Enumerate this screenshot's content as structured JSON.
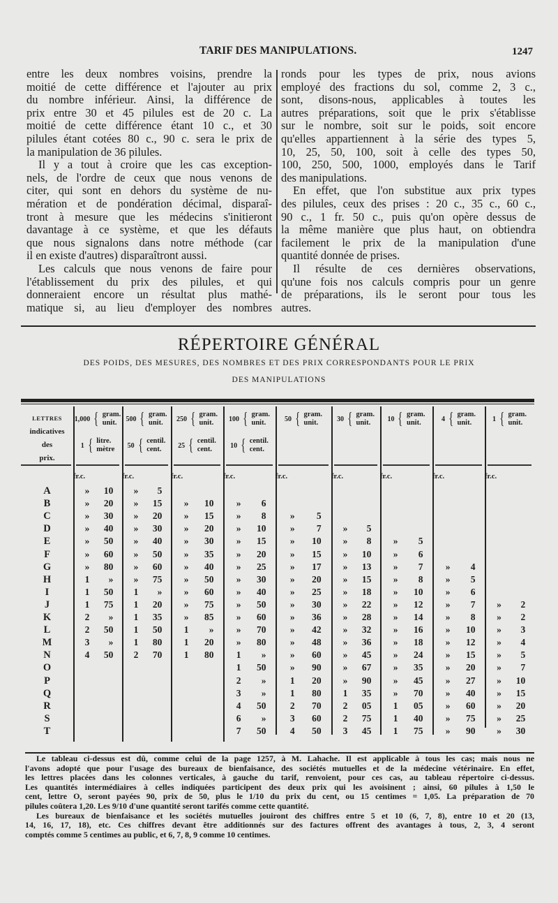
{
  "running_head": {
    "title": "TARIF DES MANIPULATIONS.",
    "page_number": "1247"
  },
  "left_column": [
    [
      "entre les deux nombres voisins, prendre la",
      "moitié de cette différence et l'ajouter au prix",
      "du nombre inférieur. Ainsi, la différence de",
      "prix entre 30 et 45 pilules est de 20 c. La",
      "moitié de cette différence étant 10 c., et 30",
      "pilules étant cotées 80 c., 90 c. sera le prix de",
      "la manipulation de 36 pilules."
    ],
    [
      "Il y a tout à croire que les cas exception-",
      "nels, de l'ordre de ceux que nous venons de",
      "citer, qui sont en dehors du système de nu-",
      "mération et de pondération décimal, disparaî-",
      "tront à mesure que les médecins s'initieront",
      "davantage à ce système, et que les défauts",
      "que nous signalons dans notre méthode (car",
      "il en existe d'autres) disparaîtront aussi."
    ],
    [
      "Les calculs que nous venons de faire pour",
      "l'établissement du prix des pilules, et qui",
      "donneraient encore un résultat plus mathé-",
      "matique si, au lieu d'employer des nombres"
    ]
  ],
  "right_column": [
    [
      "ronds pour les types de prix, nous avions",
      "employé des fractions du sol, comme 2, 3 c.,",
      "sont, disons-nous, applicables à toutes les",
      "autres préparations, soit que le prix s'établisse",
      "sur le nombre, soit sur le poids, soit encore",
      "qu'elles appartiennent à la série des types 5,",
      "10, 25, 50, 100, soit à celle des types 50,",
      "100, 250, 500, 1000, employés dans le Tarif",
      "des manipulations."
    ],
    [
      "En effet, que l'on substitue aux prix types",
      "des pilules, ceux des prises : 20 c., 35 c., 60 c.,",
      "90 c., 1 fr. 50 c., puis qu'on opère dessus de",
      "la même manière que plus haut, on obtiendra",
      "facilement le prix de la manipulation d'une",
      "quantité donnée de prises."
    ],
    [
      "Il résulte de ces dernières observations,",
      "qu'une fois nos calculs compris pour un genre",
      "de préparations, ils le seront pour tous les",
      "autres."
    ]
  ],
  "section": {
    "title": "RÉPERTOIRE GÉNÉRAL",
    "subtitle_line1": "DES POIDS, DES MESURES, DES NOMBRES ET DES PRIX CORRESPONDANTS POUR LE PRIX",
    "subtitle_line2": "DES MANIPULATIONS"
  },
  "table": {
    "letters_header": [
      "LETTRES",
      "indicatives",
      "des",
      "prix."
    ],
    "fr_label": "fr.",
    "c_label": "c.",
    "columns": [
      {
        "top_num": "1,000",
        "top_units": [
          "gram.",
          "unit."
        ],
        "bottom_num": "1",
        "bottom_units": [
          "litre.",
          "mètre"
        ]
      },
      {
        "top_num": "500",
        "top_units": [
          "gram.",
          "unit."
        ],
        "bottom_num": "50",
        "bottom_units": [
          "centil.",
          "cent."
        ]
      },
      {
        "top_num": "250",
        "top_units": [
          "gram.",
          "unit."
        ],
        "bottom_num": "25",
        "bottom_units": [
          "centil.",
          "cent."
        ]
      },
      {
        "top_num": "100",
        "top_units": [
          "gram.",
          "unit."
        ],
        "bottom_num": "10",
        "bottom_units": [
          "centil.",
          "cent."
        ]
      },
      {
        "top_num": "50",
        "top_units": [
          "gram.",
          "unit."
        ]
      },
      {
        "top_num": "30",
        "top_units": [
          "gram.",
          "unit."
        ]
      },
      {
        "top_num": "10",
        "top_units": [
          "gram.",
          "unit."
        ]
      },
      {
        "top_num": "4",
        "top_units": [
          "gram.",
          "unit."
        ]
      },
      {
        "top_num": "1",
        "top_units": [
          "gram.",
          "unit."
        ]
      }
    ],
    "rows": [
      {
        "letter": "A",
        "cells": [
          [
            "»",
            "10"
          ],
          [
            "»",
            "5"
          ],
          null,
          null,
          null,
          null,
          null,
          null,
          null
        ]
      },
      {
        "letter": "B",
        "cells": [
          [
            "»",
            "20"
          ],
          [
            "»",
            "15"
          ],
          [
            "»",
            "10"
          ],
          [
            "»",
            "6"
          ],
          null,
          null,
          null,
          null,
          null
        ]
      },
      {
        "letter": "C",
        "cells": [
          [
            "»",
            "30"
          ],
          [
            "»",
            "20"
          ],
          [
            "»",
            "15"
          ],
          [
            "»",
            "8"
          ],
          [
            "»",
            "5"
          ],
          null,
          null,
          null,
          null
        ]
      },
      {
        "letter": "D",
        "cells": [
          [
            "»",
            "40"
          ],
          [
            "»",
            "30"
          ],
          [
            "»",
            "20"
          ],
          [
            "»",
            "10"
          ],
          [
            "»",
            "7"
          ],
          [
            "»",
            "5"
          ],
          null,
          null,
          null
        ]
      },
      {
        "letter": "E",
        "cells": [
          [
            "»",
            "50"
          ],
          [
            "»",
            "40"
          ],
          [
            "»",
            "30"
          ],
          [
            "»",
            "15"
          ],
          [
            "»",
            "10"
          ],
          [
            "»",
            "8"
          ],
          [
            "»",
            "5"
          ],
          null,
          null
        ]
      },
      {
        "letter": "F",
        "cells": [
          [
            "»",
            "60"
          ],
          [
            "»",
            "50"
          ],
          [
            "»",
            "35"
          ],
          [
            "»",
            "20"
          ],
          [
            "»",
            "15"
          ],
          [
            "»",
            "10"
          ],
          [
            "»",
            "6"
          ],
          null,
          null
        ]
      },
      {
        "letter": "G",
        "cells": [
          [
            "»",
            "80"
          ],
          [
            "»",
            "60"
          ],
          [
            "»",
            "40"
          ],
          [
            "»",
            "25"
          ],
          [
            "»",
            "17"
          ],
          [
            "»",
            "13"
          ],
          [
            "»",
            "7"
          ],
          [
            "»",
            "4"
          ],
          null
        ]
      },
      {
        "letter": "H",
        "cells": [
          [
            "1",
            "»"
          ],
          [
            "»",
            "75"
          ],
          [
            "»",
            "50"
          ],
          [
            "»",
            "30"
          ],
          [
            "»",
            "20"
          ],
          [
            "»",
            "15"
          ],
          [
            "»",
            "8"
          ],
          [
            "»",
            "5"
          ],
          null
        ]
      },
      {
        "letter": "I",
        "cells": [
          [
            "1",
            "50"
          ],
          [
            "1",
            "»"
          ],
          [
            "»",
            "60"
          ],
          [
            "»",
            "40"
          ],
          [
            "»",
            "25"
          ],
          [
            "»",
            "18"
          ],
          [
            "»",
            "10"
          ],
          [
            "»",
            "6"
          ],
          null
        ]
      },
      {
        "letter": "J",
        "cells": [
          [
            "1",
            "75"
          ],
          [
            "1",
            "20"
          ],
          [
            "»",
            "75"
          ],
          [
            "»",
            "50"
          ],
          [
            "»",
            "30"
          ],
          [
            "»",
            "22"
          ],
          [
            "»",
            "12"
          ],
          [
            "»",
            "7"
          ],
          [
            "»",
            "2"
          ]
        ]
      },
      {
        "letter": "K",
        "cells": [
          [
            "2",
            "»"
          ],
          [
            "1",
            "35"
          ],
          [
            "»",
            "85"
          ],
          [
            "»",
            "60"
          ],
          [
            "»",
            "36"
          ],
          [
            "»",
            "28"
          ],
          [
            "»",
            "14"
          ],
          [
            "»",
            "8"
          ],
          [
            "»",
            "2"
          ]
        ]
      },
      {
        "letter": "L",
        "cells": [
          [
            "2",
            "50"
          ],
          [
            "1",
            "50"
          ],
          [
            "1",
            "»"
          ],
          [
            "»",
            "70"
          ],
          [
            "»",
            "42"
          ],
          [
            "»",
            "32"
          ],
          [
            "»",
            "16"
          ],
          [
            "»",
            "10"
          ],
          [
            "»",
            "3"
          ]
        ]
      },
      {
        "letter": "M",
        "cells": [
          [
            "3",
            "»"
          ],
          [
            "1",
            "80"
          ],
          [
            "1",
            "20"
          ],
          [
            "»",
            "80"
          ],
          [
            "»",
            "48"
          ],
          [
            "»",
            "36"
          ],
          [
            "»",
            "18"
          ],
          [
            "»",
            "12"
          ],
          [
            "»",
            "4"
          ]
        ]
      },
      {
        "letter": "N",
        "cells": [
          [
            "4",
            "50"
          ],
          [
            "2",
            "70"
          ],
          [
            "1",
            "80"
          ],
          [
            "1",
            "»"
          ],
          [
            "»",
            "60"
          ],
          [
            "»",
            "45"
          ],
          [
            "»",
            "24"
          ],
          [
            "»",
            "15"
          ],
          [
            "»",
            "5"
          ]
        ]
      },
      {
        "letter": "O",
        "cells": [
          null,
          null,
          null,
          [
            "1",
            "50"
          ],
          [
            "»",
            "90"
          ],
          [
            "»",
            "67"
          ],
          [
            "»",
            "35"
          ],
          [
            "»",
            "20"
          ],
          [
            "»",
            "7"
          ]
        ]
      },
      {
        "letter": "P",
        "cells": [
          null,
          null,
          null,
          [
            "2",
            "»"
          ],
          [
            "1",
            "20"
          ],
          [
            "»",
            "90"
          ],
          [
            "»",
            "45"
          ],
          [
            "»",
            "27"
          ],
          [
            "»",
            "10"
          ]
        ]
      },
      {
        "letter": "Q",
        "cells": [
          null,
          null,
          null,
          [
            "3",
            "»"
          ],
          [
            "1",
            "80"
          ],
          [
            "1",
            "35"
          ],
          [
            "»",
            "70"
          ],
          [
            "»",
            "40"
          ],
          [
            "»",
            "15"
          ]
        ]
      },
      {
        "letter": "R",
        "cells": [
          null,
          null,
          null,
          [
            "4",
            "50"
          ],
          [
            "2",
            "70"
          ],
          [
            "2",
            "05"
          ],
          [
            "1",
            "05"
          ],
          [
            "»",
            "60"
          ],
          [
            "»",
            "20"
          ]
        ]
      },
      {
        "letter": "S",
        "cells": [
          null,
          null,
          null,
          [
            "6",
            "»"
          ],
          [
            "3",
            "60"
          ],
          [
            "2",
            "75"
          ],
          [
            "1",
            "40"
          ],
          [
            "»",
            "75"
          ],
          [
            "»",
            "25"
          ]
        ]
      },
      {
        "letter": "T",
        "cells": [
          null,
          null,
          null,
          [
            "7",
            "50"
          ],
          [
            "4",
            "50"
          ],
          [
            "3",
            "45"
          ],
          [
            "1",
            "75"
          ],
          [
            "»",
            "90"
          ],
          [
            "»",
            "30"
          ]
        ]
      }
    ]
  },
  "footnote": [
    "Le tableau ci-dessus est dû, comme celui de la page 1257, à M. Lahache. Il est applicable à tous les cas; mais nous ne",
    "l'avons adopté que pour l'usage des bureaux de bienfaisance, des sociétés mutuelles et de la médecine vétérinaire. En effet,",
    "les lettres placées dans les colonnes verticales, à gauche du tarif, renvoient, pour ces cas, au tableau répertoire ci-dessus.",
    "Les quantités intermédiaires à celles indiquées participent des deux prix qui les avoisinent ; ainsi, 60 pilules à 1,50 le",
    "cent, lettre O, seront payées 90, prix de 50, plus le 1/10 du prix du cent, ou 15 centimes = 1,05. La préparation de 70",
    "pilules coûtera 1,20. Les 9/10 d'une quantité seront tarifés comme cette quantité.",
    "Les bureaux de bienfaisance et les sociétés mutuelles jouiront des chiffres entre 5 et 10 (6, 7, 8), entre 10 et 20 (13,",
    "14, 16, 17, 18), etc. Ces chiffres devant être additionnés sur des factures offrent des avantages à tous, 2, 3, 4 seront",
    "comptés comme 5 centimes au public, et 6, 7, 8, 9 comme 10 centimes."
  ]
}
